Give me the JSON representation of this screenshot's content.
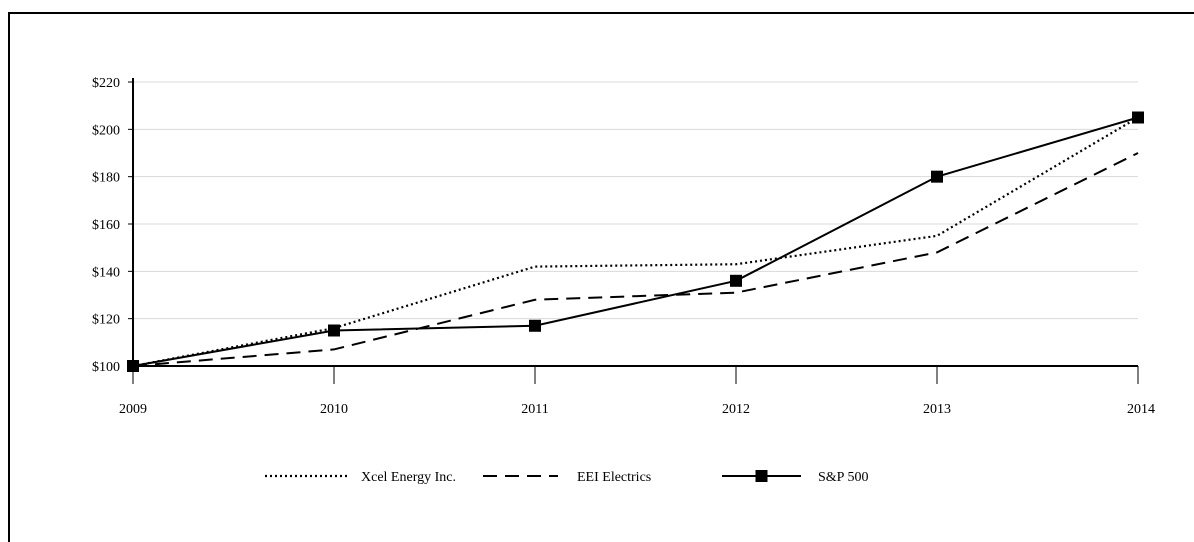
{
  "chart_data": {
    "type": "line",
    "title": "",
    "xlabel": "",
    "ylabel": "",
    "x": [
      "2009",
      "2010",
      "2011",
      "2012",
      "2013",
      "2014"
    ],
    "y_ticks": [
      "$100",
      "$120",
      "$140",
      "$160",
      "$180",
      "$200",
      "$220"
    ],
    "ylim": [
      100,
      220
    ],
    "grid": true,
    "legend_position": "bottom",
    "series": [
      {
        "name": "Xcel Energy Inc.",
        "style": "dotted",
        "marker": "none",
        "color": "#000000",
        "values": [
          100,
          116,
          142,
          143,
          155,
          205
        ]
      },
      {
        "name": "EEI Electrics",
        "style": "dashed",
        "marker": "none",
        "color": "#000000",
        "values": [
          100,
          107,
          128,
          131,
          148,
          190
        ]
      },
      {
        "name": "S&P 500",
        "style": "solid",
        "marker": "square",
        "color": "#000000",
        "values": [
          100,
          115,
          117,
          136,
          180,
          205
        ]
      }
    ]
  }
}
